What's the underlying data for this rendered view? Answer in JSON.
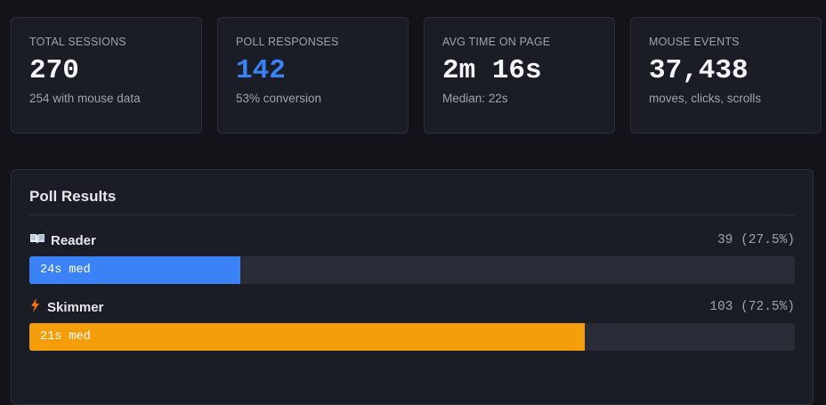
{
  "stats": [
    {
      "label": "TOTAL SESSIONS",
      "value": "270",
      "sub": "254 with mouse data"
    },
    {
      "label": "POLL RESPONSES",
      "value": "142",
      "sub": "53% conversion"
    },
    {
      "label": "AVG TIME ON PAGE",
      "value": "2m 16s",
      "sub": "Median: 22s"
    },
    {
      "label": "MOUSE EVENTS",
      "value": "37,438",
      "sub": "moves, clicks, scrolls"
    }
  ],
  "poll": {
    "title": "Poll Results",
    "options": [
      {
        "name": "Reader",
        "count": 39,
        "percent": 27.5,
        "value_label": "39 (27.5%)",
        "median": "24s med",
        "color": "#3b82f6"
      },
      {
        "name": "Skimmer",
        "count": 103,
        "percent": 72.5,
        "value_label": "103 (72.5%)",
        "median": "21s med",
        "color": "#f59e0b"
      }
    ]
  }
}
